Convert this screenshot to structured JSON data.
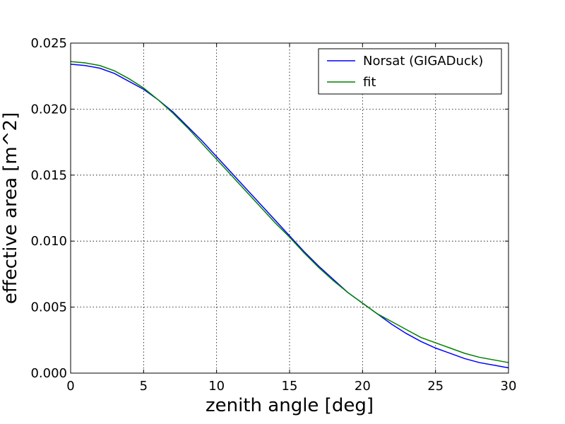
{
  "chart_data": {
    "type": "line",
    "title": "",
    "xlabel": "zenith angle [deg]",
    "ylabel": "effective area [m^2]",
    "xlim": [
      0,
      30
    ],
    "ylim": [
      0,
      0.025
    ],
    "xticks": [
      0,
      5,
      10,
      15,
      20,
      25,
      30
    ],
    "xtick_labels": [
      "0",
      "5",
      "10",
      "15",
      "20",
      "25",
      "30"
    ],
    "yticks": [
      0,
      0.005,
      0.01,
      0.015,
      0.02,
      0.025
    ],
    "ytick_labels": [
      "0.000",
      "0.005",
      "0.010",
      "0.015",
      "0.020",
      "0.025"
    ],
    "grid": true,
    "legend_position": "top-right",
    "x": [
      0,
      1,
      2,
      3,
      4,
      5,
      6,
      7,
      8,
      9,
      10,
      11,
      12,
      13,
      14,
      15,
      16,
      17,
      18,
      19,
      20,
      21,
      22,
      23,
      24,
      25,
      26,
      27,
      28,
      29,
      30
    ],
    "series": [
      {
        "name": "Norsat (GIGADuck)",
        "color": "#0000ff",
        "values": [
          0.0234,
          0.0233,
          0.0231,
          0.0227,
          0.0221,
          0.0215,
          0.0207,
          0.0198,
          0.0187,
          0.0176,
          0.0164,
          0.0152,
          0.014,
          0.0128,
          0.0116,
          0.0104,
          0.0092,
          0.0081,
          0.0071,
          0.0061,
          0.0053,
          0.0045,
          0.0037,
          0.003,
          0.0024,
          0.0019,
          0.0015,
          0.0011,
          0.0008,
          0.0006,
          0.0004
        ]
      },
      {
        "name": "fit",
        "color": "#008000",
        "values": [
          0.0236,
          0.0235,
          0.0233,
          0.0229,
          0.0223,
          0.0216,
          0.0207,
          0.0197,
          0.0186,
          0.0174,
          0.0162,
          0.015,
          0.0138,
          0.0126,
          0.0114,
          0.0103,
          0.0091,
          0.008,
          0.007,
          0.0061,
          0.0053,
          0.0045,
          0.0039,
          0.0033,
          0.0027,
          0.0023,
          0.0019,
          0.0015,
          0.0012,
          0.001,
          0.0008
        ]
      }
    ]
  }
}
